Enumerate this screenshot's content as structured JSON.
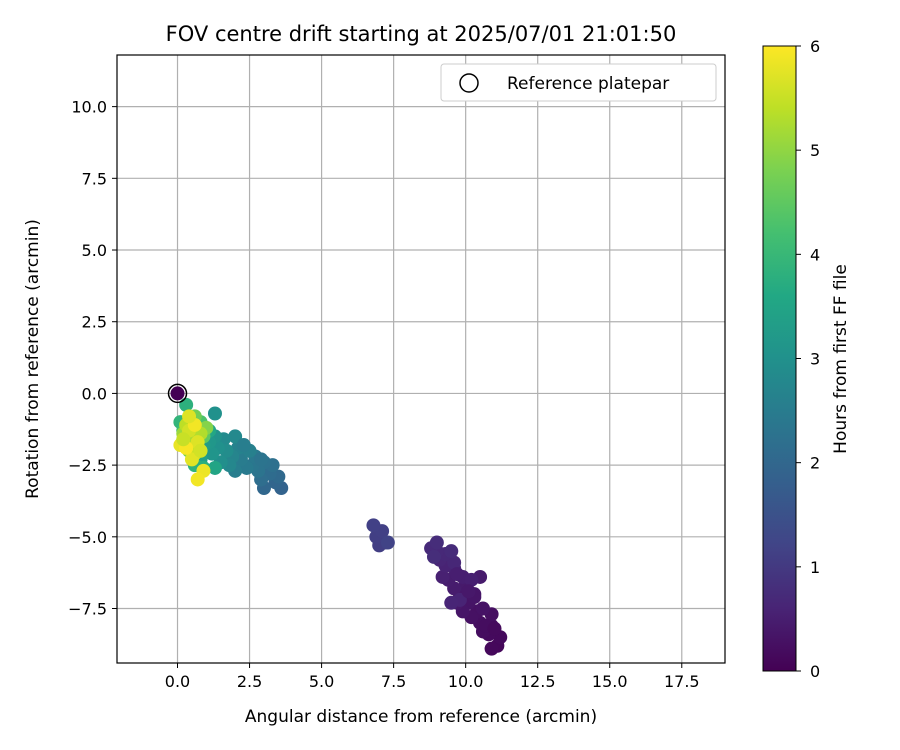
{
  "chart_data": {
    "type": "scatter",
    "title": "FOV centre drift starting at 2025/07/01 21:01:50",
    "xlabel": "Angular distance from reference (arcmin)",
    "ylabel": "Rotation from reference (arcmin)",
    "xlim": [
      -2.1,
      19.0
    ],
    "ylim": [
      -9.4,
      11.8
    ],
    "xticks": [
      "0.0",
      "2.5",
      "5.0",
      "7.5",
      "10.0",
      "12.5",
      "15.0",
      "17.5"
    ],
    "yticks": [
      "−7.5",
      "−5.0",
      "−2.5",
      "0.0",
      "2.5",
      "5.0",
      "7.5",
      "10.0"
    ],
    "xtick_values": [
      0,
      2.5,
      5,
      7.5,
      10,
      12.5,
      15,
      17.5
    ],
    "ytick_values": [
      -7.5,
      -5,
      -2.5,
      0,
      2.5,
      5,
      7.5,
      10
    ],
    "grid": true,
    "legend": {
      "position": "top-right",
      "label": "Reference platepar"
    },
    "reference_point": {
      "x": 0.0,
      "y": 0.0
    },
    "colorbar": {
      "label": "Hours from first FF file",
      "range": [
        0,
        6
      ],
      "ticks": [
        "0",
        "1",
        "2",
        "3",
        "4",
        "5",
        "6"
      ],
      "colormap": "viridis"
    },
    "points": [
      {
        "x": 0.0,
        "y": 0.0,
        "t": 0.0
      },
      {
        "x": 11.1,
        "y": -8.8,
        "t": 0.1
      },
      {
        "x": 10.9,
        "y": -8.9,
        "t": 0.12
      },
      {
        "x": 11.2,
        "y": -8.5,
        "t": 0.14
      },
      {
        "x": 10.8,
        "y": -8.4,
        "t": 0.16
      },
      {
        "x": 10.9,
        "y": -8.1,
        "t": 0.18
      },
      {
        "x": 10.6,
        "y": -8.3,
        "t": 0.2
      },
      {
        "x": 10.5,
        "y": -8.0,
        "t": 0.22
      },
      {
        "x": 10.9,
        "y": -7.7,
        "t": 0.24
      },
      {
        "x": 10.4,
        "y": -7.6,
        "t": 0.26
      },
      {
        "x": 10.2,
        "y": -7.8,
        "t": 0.28
      },
      {
        "x": 10.6,
        "y": -7.5,
        "t": 0.3
      },
      {
        "x": 10.1,
        "y": -7.3,
        "t": 0.32
      },
      {
        "x": 9.9,
        "y": -7.6,
        "t": 0.34
      },
      {
        "x": 10.3,
        "y": -7.0,
        "t": 0.36
      },
      {
        "x": 9.8,
        "y": -7.1,
        "t": 0.38
      },
      {
        "x": 9.7,
        "y": -7.3,
        "t": 0.4
      },
      {
        "x": 10.0,
        "y": -6.7,
        "t": 0.42
      },
      {
        "x": 10.5,
        "y": -6.4,
        "t": 0.44
      },
      {
        "x": 9.6,
        "y": -6.8,
        "t": 0.46
      },
      {
        "x": 9.4,
        "y": -6.5,
        "t": 0.48
      },
      {
        "x": 9.9,
        "y": -6.4,
        "t": 0.5
      },
      {
        "x": 10.2,
        "y": -6.5,
        "t": 0.52
      },
      {
        "x": 9.2,
        "y": -6.4,
        "t": 0.54
      },
      {
        "x": 9.6,
        "y": -6.1,
        "t": 0.56
      },
      {
        "x": 9.3,
        "y": -6.0,
        "t": 0.58
      },
      {
        "x": 9.8,
        "y": -7.2,
        "t": 0.6
      },
      {
        "x": 9.5,
        "y": -7.3,
        "t": 0.62
      },
      {
        "x": 9.1,
        "y": -5.8,
        "t": 0.64
      },
      {
        "x": 9.6,
        "y": -5.9,
        "t": 0.66
      },
      {
        "x": 9.3,
        "y": -5.6,
        "t": 0.68
      },
      {
        "x": 9.0,
        "y": -5.5,
        "t": 0.7
      },
      {
        "x": 8.8,
        "y": -5.4,
        "t": 0.72
      },
      {
        "x": 9.5,
        "y": -5.5,
        "t": 0.74
      },
      {
        "x": 9.0,
        "y": -5.2,
        "t": 0.76
      },
      {
        "x": 8.9,
        "y": -5.7,
        "t": 0.78
      },
      {
        "x": 10.7,
        "y": -8.1,
        "t": 0.2
      },
      {
        "x": 11.0,
        "y": -8.2,
        "t": 0.15
      },
      {
        "x": 10.3,
        "y": -7.1,
        "t": 0.35
      },
      {
        "x": 9.7,
        "y": -6.3,
        "t": 0.5
      },
      {
        "x": 10.1,
        "y": -6.9,
        "t": 0.4
      },
      {
        "x": 7.2,
        "y": -5.2,
        "t": 1.05
      },
      {
        "x": 7.0,
        "y": -5.3,
        "t": 1.08
      },
      {
        "x": 6.9,
        "y": -5.0,
        "t": 1.1
      },
      {
        "x": 7.1,
        "y": -4.8,
        "t": 1.12
      },
      {
        "x": 6.8,
        "y": -4.6,
        "t": 1.15
      },
      {
        "x": 7.3,
        "y": -5.2,
        "t": 1.18
      },
      {
        "x": 3.6,
        "y": -3.3,
        "t": 1.9
      },
      {
        "x": 3.4,
        "y": -3.1,
        "t": 1.95
      },
      {
        "x": 3.0,
        "y": -3.3,
        "t": 2.0
      },
      {
        "x": 3.5,
        "y": -2.9,
        "t": 2.05
      },
      {
        "x": 3.2,
        "y": -2.8,
        "t": 2.1
      },
      {
        "x": 2.9,
        "y": -3.0,
        "t": 2.15
      },
      {
        "x": 3.3,
        "y": -2.5,
        "t": 2.2
      },
      {
        "x": 3.0,
        "y": -2.4,
        "t": 2.25
      },
      {
        "x": 2.8,
        "y": -2.7,
        "t": 2.3
      },
      {
        "x": 2.6,
        "y": -2.5,
        "t": 2.35
      },
      {
        "x": 2.7,
        "y": -2.2,
        "t": 2.4
      },
      {
        "x": 2.4,
        "y": -2.6,
        "t": 2.45
      },
      {
        "x": 2.2,
        "y": -2.3,
        "t": 2.5
      },
      {
        "x": 2.0,
        "y": -2.7,
        "t": 2.55
      },
      {
        "x": 2.5,
        "y": -2.0,
        "t": 2.6
      },
      {
        "x": 2.1,
        "y": -1.9,
        "t": 2.65
      },
      {
        "x": 1.9,
        "y": -2.2,
        "t": 2.7
      },
      {
        "x": 1.8,
        "y": -2.5,
        "t": 2.75
      },
      {
        "x": 2.0,
        "y": -1.5,
        "t": 2.8
      },
      {
        "x": 1.6,
        "y": -1.6,
        "t": 2.85
      },
      {
        "x": 1.7,
        "y": -2.0,
        "t": 2.9
      },
      {
        "x": 1.5,
        "y": -2.4,
        "t": 2.95
      },
      {
        "x": 1.4,
        "y": -1.9,
        "t": 3.0
      },
      {
        "x": 1.3,
        "y": -1.5,
        "t": 3.05
      },
      {
        "x": 1.2,
        "y": -2.1,
        "t": 3.1
      },
      {
        "x": 1.1,
        "y": -1.7,
        "t": 3.15
      },
      {
        "x": 2.3,
        "y": -1.8,
        "t": 2.55
      },
      {
        "x": 2.9,
        "y": -2.3,
        "t": 2.3
      },
      {
        "x": 1.0,
        "y": -1.4,
        "t": 3.2
      },
      {
        "x": 0.9,
        "y": -1.8,
        "t": 3.3
      },
      {
        "x": 0.8,
        "y": -2.3,
        "t": 3.4
      },
      {
        "x": 1.3,
        "y": -2.6,
        "t": 3.5
      },
      {
        "x": 0.7,
        "y": -1.1,
        "t": 3.6
      },
      {
        "x": 0.5,
        "y": -0.9,
        "t": 3.7
      },
      {
        "x": 0.3,
        "y": -0.4,
        "t": 3.8
      },
      {
        "x": 0.1,
        "y": -1.0,
        "t": 3.9
      },
      {
        "x": 0.4,
        "y": -1.5,
        "t": 4.0
      },
      {
        "x": 1.3,
        "y": -0.7,
        "t": 3.0
      },
      {
        "x": 0.6,
        "y": -2.5,
        "t": 3.85
      },
      {
        "x": 0.2,
        "y": -1.3,
        "t": 4.1
      },
      {
        "x": 0.9,
        "y": -2.6,
        "t": 3.75
      },
      {
        "x": 1.1,
        "y": -1.3,
        "t": 3.55
      },
      {
        "x": 0.8,
        "y": -1.0,
        "t": 4.3
      },
      {
        "x": 0.5,
        "y": -1.2,
        "t": 4.4
      },
      {
        "x": 0.9,
        "y": -1.5,
        "t": 4.5
      },
      {
        "x": 0.3,
        "y": -1.7,
        "t": 4.6
      },
      {
        "x": 0.6,
        "y": -0.8,
        "t": 4.7
      },
      {
        "x": 0.4,
        "y": -2.0,
        "t": 4.8
      },
      {
        "x": 1.0,
        "y": -1.2,
        "t": 4.9
      },
      {
        "x": 0.7,
        "y": -1.9,
        "t": 5.0
      },
      {
        "x": 0.2,
        "y": -1.4,
        "t": 5.1
      },
      {
        "x": 0.5,
        "y": -1.6,
        "t": 5.2
      },
      {
        "x": 0.8,
        "y": -1.4,
        "t": 5.3
      },
      {
        "x": 0.3,
        "y": -1.1,
        "t": 5.4
      },
      {
        "x": 0.6,
        "y": -2.1,
        "t": 5.5
      },
      {
        "x": 0.4,
        "y": -1.3,
        "t": 5.6
      },
      {
        "x": 0.7,
        "y": -1.7,
        "t": 5.7
      },
      {
        "x": 0.5,
        "y": -2.3,
        "t": 5.75
      },
      {
        "x": 0.1,
        "y": -1.8,
        "t": 5.8
      },
      {
        "x": 0.9,
        "y": -2.7,
        "t": 5.85
      },
      {
        "x": 0.7,
        "y": -3.0,
        "t": 5.9
      },
      {
        "x": 0.3,
        "y": -1.9,
        "t": 5.95
      },
      {
        "x": 0.6,
        "y": -1.1,
        "t": 5.9
      },
      {
        "x": 0.4,
        "y": -0.8,
        "t": 5.7
      },
      {
        "x": 0.8,
        "y": -2.0,
        "t": 5.6
      },
      {
        "x": 0.2,
        "y": -1.6,
        "t": 5.5
      }
    ]
  }
}
